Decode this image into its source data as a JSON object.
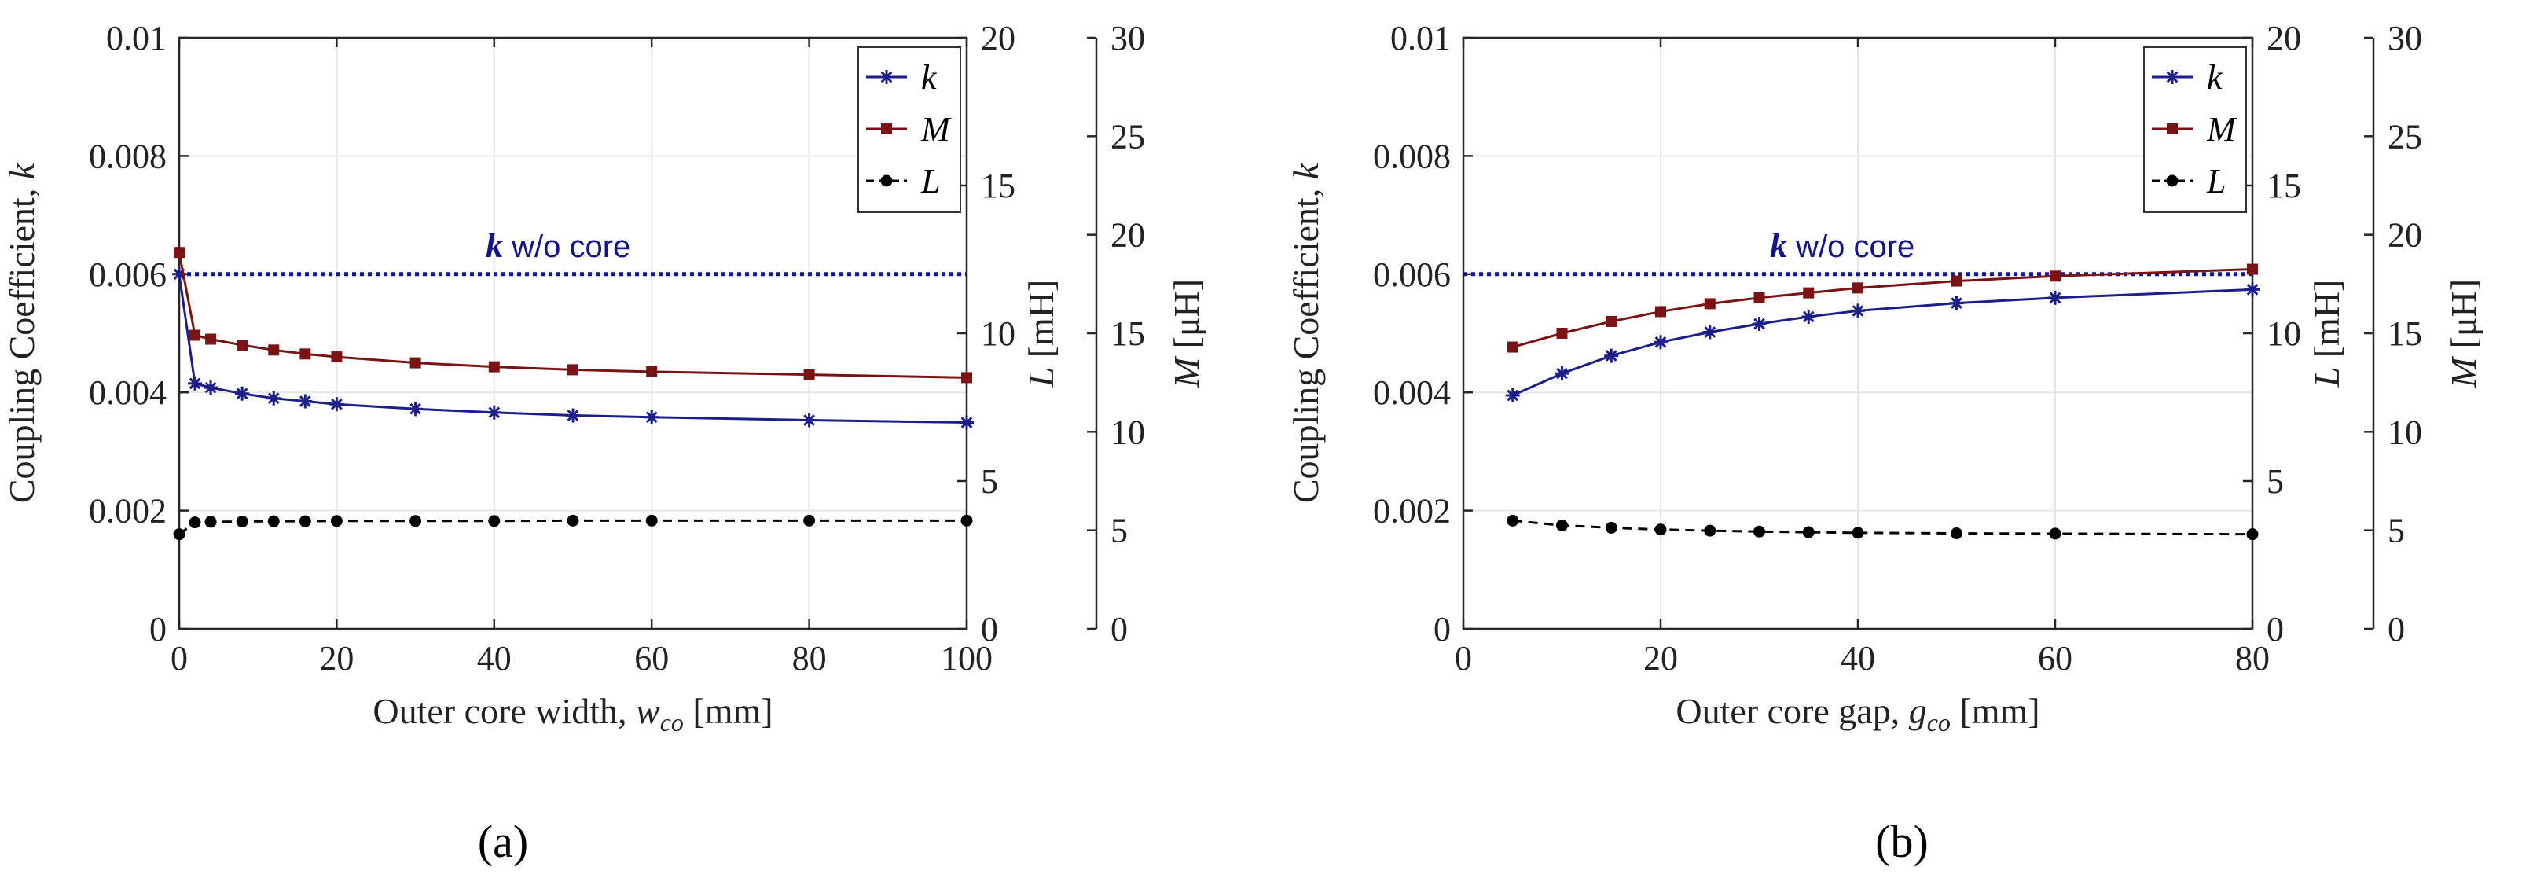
{
  "colors": {
    "k": "#1c1f8a",
    "M": "#7a1414",
    "L": "#000000",
    "ref": "#14148c"
  },
  "chart_data": [
    {
      "id": "a",
      "type": "line",
      "panel_label": "(a)",
      "xlabel_prefix": "Outer core width, ",
      "xlabel_var": "w",
      "xlabel_sub": "co",
      "xlabel_suffix": " [mm]",
      "ylabel": "Coupling Coefficient, ",
      "ylabel_var": "k",
      "ylabel_right1_var": "L",
      "ylabel_right1_unit": " [mH]",
      "ylabel_right2_var": "M",
      "ylabel_right2_unit": " [μH]",
      "xlim": [
        0,
        100
      ],
      "xticks": [
        0,
        20,
        40,
        60,
        80,
        100
      ],
      "ylim": [
        0,
        0.01
      ],
      "yticks": [
        "0",
        "0.002",
        "0.004",
        "0.006",
        "0.008",
        "0.01"
      ],
      "ylim_right1": [
        0,
        20
      ],
      "yticks_right1": [
        "0",
        "5",
        "10",
        "15",
        "20"
      ],
      "ylim_right2": [
        0,
        30
      ],
      "yticks_right2": [
        "0",
        "5",
        "10",
        "15",
        "20",
        "25",
        "30"
      ],
      "reference_line": {
        "value": 0.006,
        "label_bold": "k",
        "label_rest": " w/o core"
      },
      "legend": [
        "k",
        "M",
        "L"
      ],
      "series": [
        {
          "name": "k",
          "axis": "left",
          "marker": "star",
          "x": [
            0,
            2,
            4,
            8,
            12,
            16,
            20,
            30,
            40,
            50,
            60,
            80,
            100
          ],
          "y": [
            0.006,
            0.00415,
            0.00408,
            0.00398,
            0.0039,
            0.00385,
            0.0038,
            0.00372,
            0.00366,
            0.00361,
            0.00358,
            0.00353,
            0.00349
          ]
        },
        {
          "name": "M",
          "axis": "right2",
          "marker": "square",
          "x": [
            0,
            2,
            4,
            8,
            12,
            16,
            20,
            30,
            40,
            50,
            60,
            80,
            100
          ],
          "y": [
            19.1,
            14.9,
            14.7,
            14.4,
            14.15,
            13.95,
            13.8,
            13.5,
            13.3,
            13.15,
            13.05,
            12.9,
            12.75
          ]
        },
        {
          "name": "L",
          "axis": "right1",
          "marker": "circle",
          "dashed": true,
          "x": [
            0,
            2,
            4,
            8,
            12,
            16,
            20,
            30,
            40,
            50,
            60,
            80,
            100
          ],
          "y": [
            3.2,
            3.6,
            3.62,
            3.63,
            3.64,
            3.64,
            3.65,
            3.65,
            3.65,
            3.66,
            3.66,
            3.66,
            3.66
          ]
        }
      ]
    },
    {
      "id": "b",
      "type": "line",
      "panel_label": "(b)",
      "xlabel_prefix": "Outer core gap, ",
      "xlabel_var": "g",
      "xlabel_sub": "co",
      "xlabel_suffix": " [mm]",
      "ylabel": "Coupling Coefficient, ",
      "ylabel_var": "k",
      "ylabel_right1_var": "L",
      "ylabel_right1_unit": " [mH]",
      "ylabel_right2_var": "M",
      "ylabel_right2_unit": " [μH]",
      "xlim": [
        0,
        80
      ],
      "xticks": [
        0,
        20,
        40,
        60,
        80
      ],
      "ylim": [
        0,
        0.01
      ],
      "yticks": [
        "0",
        "0.002",
        "0.004",
        "0.006",
        "0.008",
        "0.01"
      ],
      "ylim_right1": [
        0,
        20
      ],
      "yticks_right1": [
        "0",
        "5",
        "10",
        "15",
        "20"
      ],
      "ylim_right2": [
        0,
        30
      ],
      "yticks_right2": [
        "0",
        "5",
        "10",
        "15",
        "20",
        "25",
        "30"
      ],
      "reference_line": {
        "value": 0.006,
        "label_bold": "k",
        "label_rest": " w/o core"
      },
      "legend": [
        "k",
        "M",
        "L"
      ],
      "series": [
        {
          "name": "k",
          "axis": "left",
          "marker": "star",
          "x": [
            5,
            10,
            15,
            20,
            25,
            30,
            35,
            40,
            50,
            60,
            80
          ],
          "y": [
            0.00395,
            0.00432,
            0.00462,
            0.00485,
            0.00502,
            0.00516,
            0.00528,
            0.00538,
            0.00551,
            0.0056,
            0.00574
          ]
        },
        {
          "name": "M",
          "axis": "right2",
          "marker": "square",
          "x": [
            5,
            10,
            15,
            20,
            25,
            30,
            35,
            40,
            50,
            60,
            80
          ],
          "y": [
            14.3,
            15.0,
            15.6,
            16.1,
            16.5,
            16.8,
            17.05,
            17.3,
            17.65,
            17.9,
            18.25
          ]
        },
        {
          "name": "L",
          "axis": "right1",
          "marker": "circle",
          "dashed": true,
          "x": [
            5,
            10,
            15,
            20,
            25,
            30,
            35,
            40,
            50,
            60,
            80
          ],
          "y": [
            3.66,
            3.5,
            3.42,
            3.36,
            3.32,
            3.29,
            3.27,
            3.25,
            3.23,
            3.22,
            3.2
          ]
        }
      ]
    }
  ]
}
